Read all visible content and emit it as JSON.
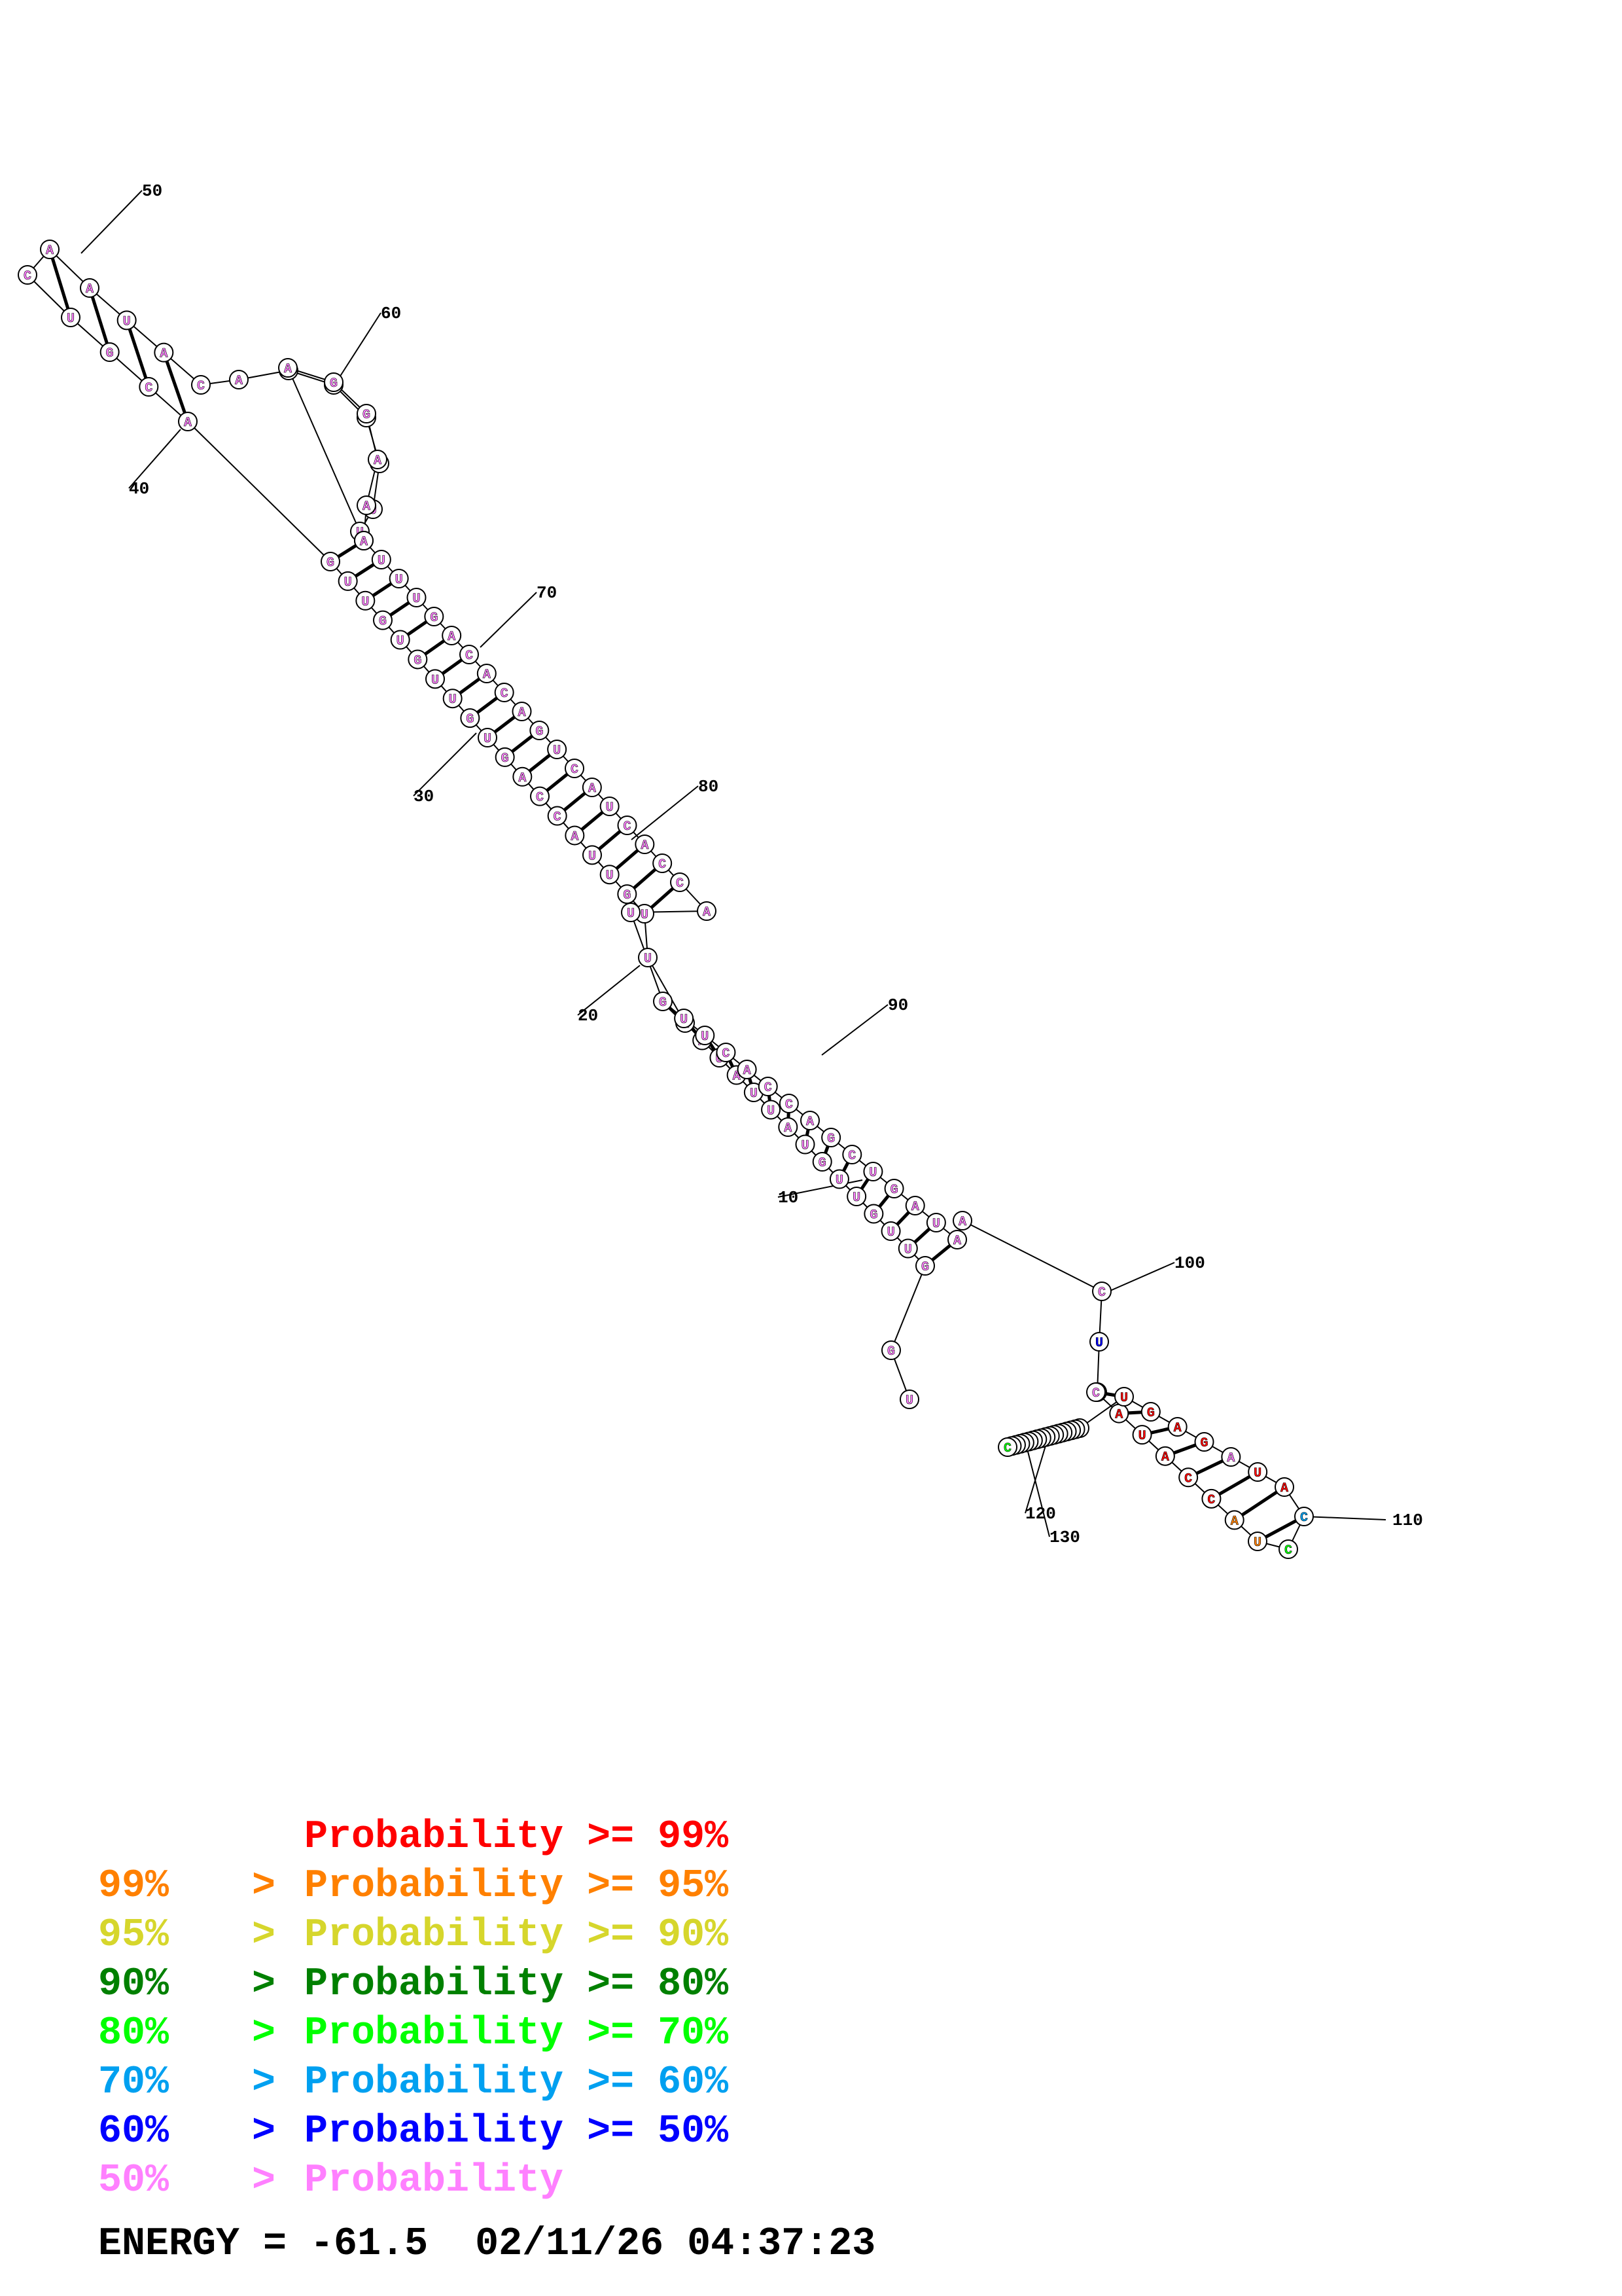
{
  "tick_labels": [
    "10",
    "20",
    "30",
    "40",
    "50",
    "60",
    "70",
    "80",
    "90",
    "100",
    "110",
    "120",
    "130"
  ],
  "colors": {
    "p99": "#ff0000",
    "p95": "#ff8000",
    "p90": "#d6d62c",
    "p80": "#008000",
    "p70": "#00ff00",
    "p60": "#00a0f0",
    "p50": "#0000ff",
    "p0": "#ff80ff"
  },
  "legend": [
    {
      "low": "",
      "gt": "",
      "mid": "Probability",
      "ge": ">=",
      "high": "99%",
      "color": "#ff0000"
    },
    {
      "low": "99%",
      "gt": ">",
      "mid": "Probability",
      "ge": ">=",
      "high": "95%",
      "color": "#ff8000"
    },
    {
      "low": "95%",
      "gt": ">",
      "mid": "Probability",
      "ge": ">=",
      "high": "90%",
      "color": "#d6d62c"
    },
    {
      "low": "90%",
      "gt": ">",
      "mid": "Probability",
      "ge": ">=",
      "high": "80%",
      "color": "#008000"
    },
    {
      "low": "80%",
      "gt": ">",
      "mid": "Probability",
      "ge": ">=",
      "high": "70%",
      "color": "#00ff00"
    },
    {
      "low": "70%",
      "gt": ">",
      "mid": "Probability",
      "ge": ">=",
      "high": "60%",
      "color": "#00a0f0"
    },
    {
      "low": "60%",
      "gt": ">",
      "mid": "Probability",
      "ge": ">=",
      "high": "50%",
      "color": "#0000ff"
    },
    {
      "low": "50%",
      "gt": ">",
      "mid": "Probability",
      "ge": "",
      "high": "",
      "color": "#ff80ff"
    }
  ],
  "energy": {
    "label": "ENERGY = -61.5",
    "timestamp": "02/11/26 04:37:23"
  },
  "sequence": "UGGUUGUUGUAUUAUAAUUGUUACCAGUGUUGUGUUGACGUCAAUACAUACCUUUAAGGAAUUUGACACAGUCAUCACCAUGUUCACCAGCUGAUAACUCCAUACCAUCCAUAGAGUCCUUAACGGUUUUUUUCC",
  "probability_class": "ppppppppppppppppppppppppppppppppppppppppppppppppbrppppppppppppppppppppppppppppppppppppppppppppppppbyprrrrrooglrrarrrrrrrogyrrrrrrrrrrlgyyp",
  "pairs": [
    [
      3,
      96
    ],
    [
      4,
      95
    ],
    [
      5,
      94
    ],
    [
      6,
      93
    ],
    [
      7,
      92
    ],
    [
      8,
      91
    ],
    [
      9,
      90
    ],
    [
      10,
      89
    ],
    [
      11,
      88
    ],
    [
      12,
      87
    ],
    [
      13,
      86
    ],
    [
      14,
      85
    ],
    [
      15,
      84
    ],
    [
      16,
      83
    ],
    [
      17,
      82
    ],
    [
      19,
      79
    ],
    [
      20,
      78
    ],
    [
      21,
      77
    ],
    [
      22,
      76
    ],
    [
      23,
      75
    ],
    [
      24,
      74
    ],
    [
      25,
      73
    ],
    [
      26,
      72
    ],
    [
      27,
      71
    ],
    [
      28,
      70
    ],
    [
      29,
      69
    ],
    [
      30,
      68
    ],
    [
      31,
      67
    ],
    [
      32,
      66
    ],
    [
      33,
      65
    ],
    [
      34,
      64
    ],
    [
      35,
      63
    ],
    [
      36,
      62
    ],
    [
      37,
      61
    ],
    [
      38,
      46
    ],
    [
      39,
      45
    ],
    [
      40,
      44
    ],
    [
      41,
      43
    ],
    [
      101,
      117
    ],
    [
      102,
      116
    ],
    [
      103,
      115
    ],
    [
      104,
      114
    ],
    [
      105,
      113
    ],
    [
      106,
      112
    ],
    [
      107,
      111
    ],
    [
      108,
      110
    ]
  ]
}
